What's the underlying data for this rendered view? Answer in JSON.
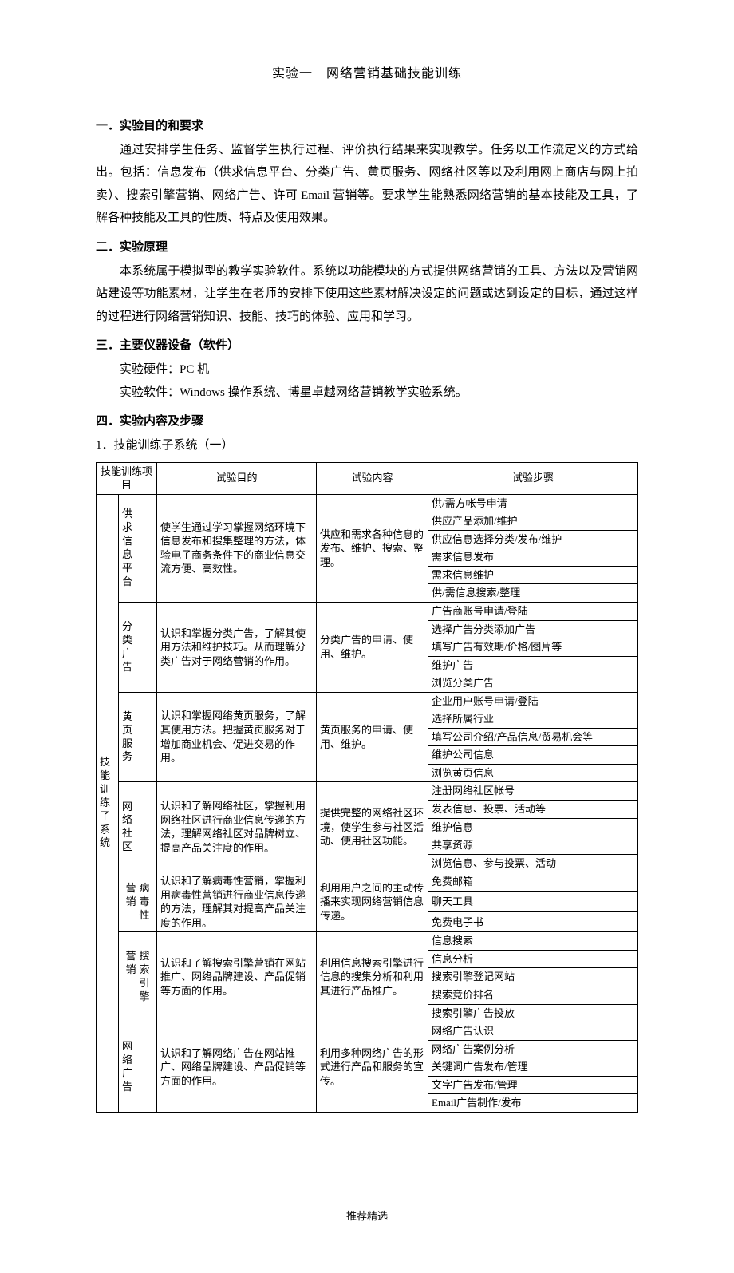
{
  "title": "实验一　网络营销基础技能训练",
  "sections": {
    "s1": {
      "heading": "一．实验目的和要求",
      "body": "通过安排学生任务、监督学生执行过程、评价执行结果来实现教学。任务以工作流定义的方式给出。包括：信息发布（供求信息平台、分类广告、黄页服务、网络社区等以及利用网上商店与网上拍卖）、搜索引擎营销、网络广告、许可 Email 营销等。要求学生能熟悉网络营销的基本技能及工具，了解各种技能及工具的性质、特点及使用效果。"
    },
    "s2": {
      "heading": "二．实验原理",
      "body": "本系统属于模拟型的教学实验软件。系统以功能模块的方式提供网络营销的工具、方法以及营销网站建设等功能素材，让学生在老师的安排下使用这些素材解决设定的问题或达到设定的目标，通过这样的过程进行网络营销知识、技能、技巧的体验、应用和学习。"
    },
    "s3": {
      "heading": "三．主要仪器设备（软件）",
      "line1": "实验硬件：PC 机",
      "line2": "实验软件：Windows 操作系统、博星卓越网络营销教学实验系统。"
    },
    "s4": {
      "heading": "四．实验内容及步骤",
      "sub1": "1．技能训练子系统（一）"
    }
  },
  "table": {
    "headers": {
      "c1": "技能训练项目",
      "c2": "试验目的",
      "c3": "试验内容",
      "c4": "试验步骤"
    },
    "groupLabel": "技能训练子系统",
    "rows": [
      {
        "project": "供求信息平台",
        "purpose": "使学生通过学习掌握网络环境下信息发布和搜集整理的方法，体验电子商务条件下的商业信息交流方便、高效性。",
        "content": "供应和需求各种信息的发布、维护、搜索、整理。",
        "steps": [
          "供/需方帐号申请",
          "供应产品添加/维护",
          "供应信息选择分类/发布/维护",
          "需求信息发布",
          "需求信息维护",
          "供/需信息搜索/整理"
        ]
      },
      {
        "project": "分类广告",
        "purpose": "认识和掌握分类广告，了解其使用方法和维护技巧。从而理解分类广告对于网络营销的作用。",
        "content": "分类广告的申请、使用、维护。",
        "steps": [
          "广告商账号申请/登陆",
          "选择广告分类添加广告",
          "填写广告有效期/价格/图片等",
          "维护广告",
          "浏览分类广告"
        ]
      },
      {
        "project": "黄页服务",
        "purpose": "认识和掌握网络黄页服务，了解其使用方法。把握黄页服务对于增加商业机会、促进交易的作用。",
        "content": "黄页服务的申请、使用、维护。",
        "steps": [
          "企业用户账号申请/登陆",
          "选择所属行业",
          "填写公司介绍/产品信息/贸易机会等",
          "维护公司信息",
          "浏览黄页信息"
        ]
      },
      {
        "project": "网络社区",
        "purpose": "认识和了解网络社区，掌握利用网络社区进行商业信息传递的方法，理解网络社区对品牌树立、提高产品关注度的作用。",
        "content": "提供完整的网络社区环境，使学生参与社区活动、使用社区功能。",
        "steps": [
          "注册网络社区帐号",
          "发表信息、投票、活动等",
          "维护信息",
          "共享资源",
          "浏览信息、参与投票、活动"
        ]
      },
      {
        "project": "病毒性营销",
        "vproject": "病毒性",
        "vproject2": "营销",
        "purpose": "认识和了解病毒性营销，掌握利用病毒性营销进行商业信息传递的方法，理解其对提高产品关注度的作用。",
        "content": "利用用户之间的主动传播来实现网络营销信息传递。",
        "steps": [
          "免费邮箱",
          "聊天工具",
          "免费电子书"
        ]
      },
      {
        "project": "搜索引擎营销",
        "vproject": "搜索引擎",
        "vproject2": "营销",
        "purpose": "认识和了解搜索引擎营销在网站推广、网络品牌建设、产品促销等方面的作用。",
        "content": "利用信息搜索引擎进行信息的搜集分析和利用其进行产品推广。",
        "steps": [
          "信息搜索",
          "信息分析",
          "搜索引擎登记网站",
          "搜索竞价排名",
          "搜索引擎广告投放"
        ]
      },
      {
        "project": "网络广告",
        "purpose": "认识和了解网络广告在网站推广、网络品牌建设、产品促销等方面的作用。",
        "content": "利用多种网络广告的形式进行产品和服务的宣传。",
        "steps": [
          "网络广告认识",
          "网络广告案例分析",
          "关键词广告发布/管理",
          "文字广告发布/管理",
          "Email广告制作/发布"
        ]
      }
    ]
  },
  "footer": "推荐精选"
}
